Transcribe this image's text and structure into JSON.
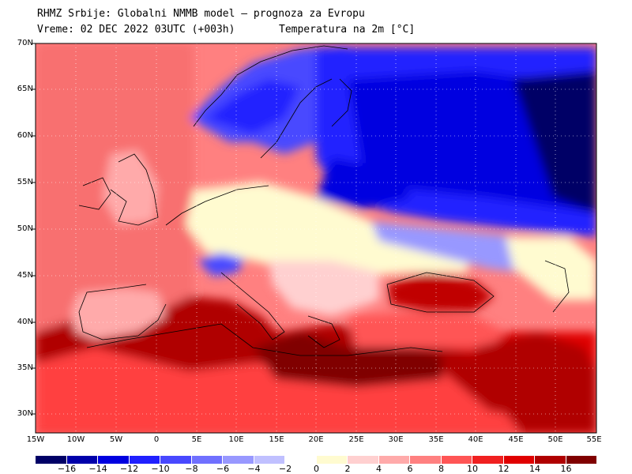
{
  "header": {
    "title_line1": "RHMZ Srbije: Globalni NMMB model — prognoza za Evropu",
    "title_line2": "Vreme: 02 DEC 2022 03UTC (+003h)",
    "variable": "Temperatura na 2m [°C]"
  },
  "axes": {
    "lat_labels": [
      "70N",
      "65N",
      "60N",
      "55N",
      "50N",
      "45N",
      "40N",
      "35N",
      "30N"
    ],
    "lon_labels": [
      "15W",
      "10W",
      "5W",
      "0",
      "5E",
      "10E",
      "15E",
      "20E",
      "25E",
      "30E",
      "35E",
      "40E",
      "45E",
      "50E",
      "55E"
    ]
  },
  "legend": {
    "labels": [
      "−16",
      "−14",
      "−12",
      "−10",
      "−8",
      "−6",
      "−4",
      "−2",
      "0",
      "2",
      "4",
      "6",
      "8",
      "10",
      "12",
      "14",
      "16"
    ],
    "colors": [
      "#000066",
      "#0000aa",
      "#0000e0",
      "#2020ff",
      "#4848ff",
      "#7070ff",
      "#9898ff",
      "#c0c0ff",
      "#ffffff",
      "#fffbd0",
      "#ffd0d0",
      "#ffaaaa",
      "#ff8080",
      "#ff5555",
      "#f02020",
      "#e00000",
      "#b00000",
      "#800000"
    ]
  },
  "map_colors": {
    "sea_warm": "#ff5555",
    "atlantic": "#f87070",
    "hot": "#b00000",
    "very_hot": "#800000",
    "cold": "#2020ff",
    "very_cold": "#000066",
    "mild": "#ffaaaa",
    "neutral": "#fffbd0"
  }
}
